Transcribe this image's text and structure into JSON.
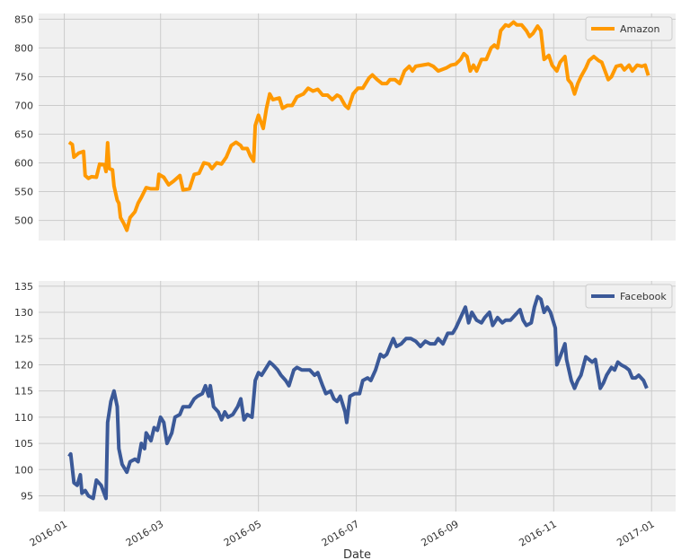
{
  "chart_data": [
    {
      "type": "line",
      "series": [
        {
          "name": "Amazon",
          "color": "#ff9900",
          "x": [
            3,
            5,
            6,
            9,
            12,
            13,
            15,
            17,
            20,
            22,
            25,
            26,
            27,
            28,
            30,
            31,
            33,
            34,
            35,
            37,
            39,
            41,
            44,
            46,
            48,
            51,
            54,
            58,
            59,
            62,
            65,
            68,
            72,
            74,
            78,
            81,
            84,
            87,
            90,
            92,
            95,
            98,
            101,
            104,
            107,
            110,
            111,
            114,
            116,
            118,
            119,
            121,
            124,
            126,
            128,
            130,
            134,
            136,
            139,
            142,
            145,
            149,
            152,
            155,
            158,
            161,
            164,
            167,
            170,
            172,
            175,
            177,
            180,
            183,
            186,
            190,
            192,
            195,
            198,
            201,
            203,
            206,
            209,
            212,
            215,
            217,
            219,
            223,
            227,
            230,
            233,
            236,
            238,
            241,
            244,
            247,
            249,
            251,
            253,
            255,
            257,
            260,
            263,
            266,
            268,
            270,
            272,
            275,
            277,
            280,
            282,
            285,
            288,
            290,
            292,
            295,
            297,
            299,
            302,
            304,
            307,
            309,
            312,
            314,
            316,
            318,
            320,
            322,
            325,
            327,
            330,
            333,
            335,
            337,
            339,
            341,
            344,
            347,
            349,
            352,
            354,
            357,
            360,
            362,
            364
          ],
          "values": [
            636,
            632,
            610,
            617,
            620,
            578,
            573,
            576,
            575,
            598,
            597,
            585,
            635,
            590,
            588,
            560,
            535,
            530,
            505,
            495,
            483,
            505,
            515,
            530,
            540,
            557,
            555,
            555,
            580,
            575,
            562,
            568,
            578,
            553,
            555,
            580,
            582,
            600,
            598,
            590,
            600,
            598,
            610,
            630,
            636,
            630,
            625,
            625,
            612,
            603,
            665,
            683,
            660,
            695,
            720,
            710,
            713,
            695,
            700,
            700,
            715,
            720,
            730,
            725,
            728,
            718,
            718,
            710,
            718,
            715,
            700,
            695,
            720,
            730,
            730,
            748,
            753,
            745,
            738,
            738,
            745,
            745,
            738,
            760,
            768,
            760,
            768,
            770,
            772,
            768,
            760,
            763,
            765,
            770,
            772,
            780,
            790,
            785,
            760,
            770,
            760,
            780,
            780,
            800,
            805,
            800,
            830,
            840,
            838,
            845,
            840,
            840,
            830,
            820,
            825,
            838,
            830,
            780,
            787,
            770,
            760,
            775,
            785,
            745,
            738,
            720,
            738,
            750,
            765,
            778,
            785,
            778,
            775,
            760,
            745,
            750,
            768,
            770,
            762,
            770,
            760,
            770,
            768,
            770,
            752
          ]
        }
      ],
      "xlim": [
        -16,
        381
      ],
      "xticks": [
        0,
        60,
        121,
        182,
        244,
        305,
        366
      ],
      "ylim": [
        465,
        860
      ],
      "yticks": [
        500,
        550,
        600,
        650,
        700,
        750,
        800,
        850
      ],
      "grid": true,
      "legend": "upper right"
    },
    {
      "type": "line",
      "series": [
        {
          "name": "Facebook",
          "color": "#3b5998",
          "x": [
            3,
            4,
            6,
            8,
            10,
            11,
            13,
            15,
            18,
            20,
            23,
            26,
            27,
            29,
            31,
            33,
            34,
            36,
            39,
            41,
            44,
            46,
            48,
            50,
            51,
            54,
            56,
            58,
            60,
            62,
            64,
            67,
            69,
            72,
            74,
            78,
            81,
            83,
            86,
            88,
            90,
            91,
            93,
            96,
            98,
            100,
            102,
            105,
            108,
            110,
            112,
            114,
            117,
            119,
            121,
            123,
            126,
            128,
            130,
            133,
            135,
            138,
            140,
            143,
            145,
            148,
            150,
            153,
            156,
            158,
            161,
            163,
            166,
            168,
            170,
            172,
            175,
            176,
            178,
            181,
            184,
            186,
            189,
            191,
            194,
            197,
            199,
            201,
            205,
            207,
            210,
            213,
            216,
            219,
            222,
            225,
            228,
            231,
            233,
            236,
            239,
            242,
            244,
            247,
            250,
            252,
            254,
            257,
            260,
            262,
            265,
            267,
            270,
            273,
            275,
            278,
            281,
            284,
            286,
            288,
            291,
            293,
            295,
            297,
            299,
            301,
            303,
            306,
            307,
            309,
            312,
            313,
            316,
            318,
            320,
            322,
            325,
            327,
            329,
            331,
            334,
            336,
            338,
            341,
            343,
            345,
            347,
            350,
            352,
            354,
            356,
            358,
            361,
            363
          ],
          "values": [
            102.5,
            103,
            97.5,
            97,
            99,
            95.5,
            96,
            95,
            94.5,
            98,
            97,
            94.5,
            109,
            113,
            115,
            112,
            104,
            101,
            99.5,
            101.5,
            102,
            101.5,
            105,
            104,
            107,
            105.5,
            108,
            107.5,
            110,
            109,
            105,
            107,
            110,
            110.5,
            112,
            112,
            113.5,
            114,
            114.5,
            116,
            114,
            116,
            112,
            111,
            109.5,
            111,
            110,
            110.5,
            112,
            113.5,
            109.5,
            110.5,
            110,
            117,
            118.5,
            118,
            119.5,
            120.5,
            120,
            119,
            118,
            117,
            116,
            119,
            119.5,
            119,
            119,
            119,
            118,
            118.5,
            116,
            114.5,
            115,
            113.5,
            113,
            114,
            111,
            109,
            114,
            114.5,
            114.5,
            117,
            117.5,
            117,
            119,
            122,
            121.5,
            122,
            125,
            123.5,
            124,
            125,
            125,
            124.5,
            123.5,
            124.5,
            124,
            124,
            125,
            124,
            126,
            126,
            127,
            129,
            131,
            128,
            130,
            128.5,
            128,
            129,
            130,
            127.5,
            129,
            128,
            128.5,
            128.5,
            129.5,
            130.5,
            128.5,
            127.5,
            128,
            131,
            133,
            132.5,
            130,
            131,
            130,
            127,
            120,
            121.5,
            124,
            121,
            117,
            115.5,
            117,
            118,
            121.5,
            121,
            120.5,
            121,
            115.5,
            116.5,
            118,
            119.5,
            119,
            120.5,
            120,
            119.5,
            119,
            117.5,
            117.5,
            118,
            117,
            115.5
          ]
        }
      ],
      "xlim": [
        -16,
        381
      ],
      "xticks": [
        {
          "value": 0,
          "label": "2016-01"
        },
        {
          "value": 60,
          "label": "2016-03"
        },
        {
          "value": 121,
          "label": "2016-05"
        },
        {
          "value": 182,
          "label": "2016-07"
        },
        {
          "value": 244,
          "label": "2016-09"
        },
        {
          "value": 305,
          "label": "2016-11"
        },
        {
          "value": 366,
          "label": "2017-01"
        }
      ],
      "xlabel": "Date",
      "ylim": [
        92,
        136
      ],
      "yticks": [
        95,
        100,
        105,
        110,
        115,
        120,
        125,
        130,
        135
      ],
      "grid": true,
      "legend": "upper right"
    }
  ]
}
